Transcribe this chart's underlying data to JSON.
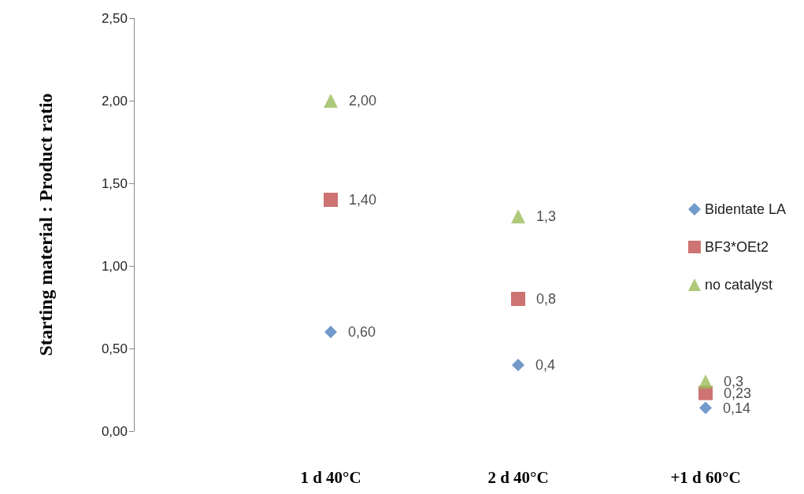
{
  "chart_data": {
    "type": "scatter",
    "ylabel": "Starting material : Product ratio",
    "categories": [
      "1 d 40°C",
      "2 d 40°C",
      "+1 d 60°C"
    ],
    "series": [
      {
        "name": "Bidentate LA",
        "color": "#4f81bd",
        "marker": "diamond",
        "values": [
          0.6,
          0.4,
          0.14
        ],
        "value_labels": [
          "0,60",
          "0,4",
          "0,14"
        ]
      },
      {
        "name": "BF3*OEt2",
        "color": "#c0504d",
        "marker": "square",
        "values": [
          1.4,
          0.8,
          0.23
        ],
        "value_labels": [
          "1,40",
          "0,8",
          "0,23"
        ]
      },
      {
        "name": "no catalyst",
        "color": "#9bbb59",
        "marker": "triangle",
        "values": [
          2.0,
          1.3,
          0.3
        ],
        "value_labels": [
          "2,00",
          "1,3",
          "0,3"
        ]
      }
    ],
    "ylim": [
      0,
      2.5
    ],
    "yticks": [
      {
        "value": 0,
        "label": "0,00"
      },
      {
        "value": 0.5,
        "label": "0,50"
      },
      {
        "value": 1,
        "label": "1,00"
      },
      {
        "value": 1.5,
        "label": "1,50"
      },
      {
        "value": 2,
        "label": "2,00"
      },
      {
        "value": 2.5,
        "label": "2,50"
      }
    ],
    "grid": false,
    "legend": "right"
  }
}
